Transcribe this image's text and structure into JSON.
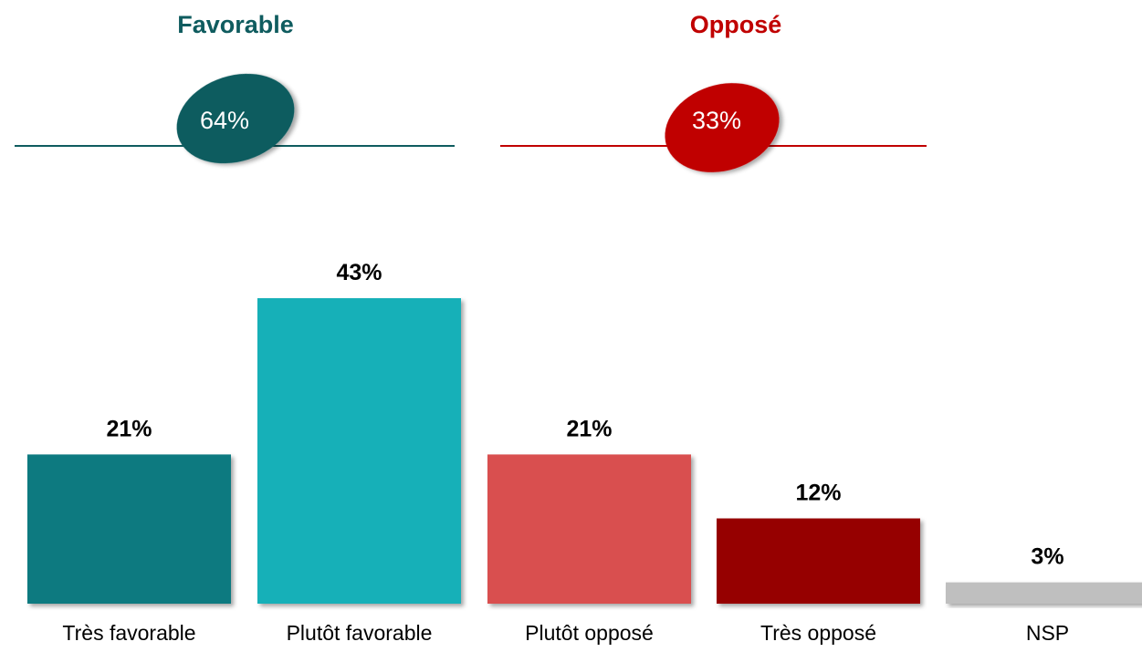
{
  "chart_data": {
    "type": "bar",
    "categories": [
      "Très favorable",
      "Plutôt favorable",
      "Plutôt opposé",
      "Très opposé",
      "NSP"
    ],
    "values": [
      21,
      43,
      21,
      12,
      3
    ],
    "value_labels": [
      "21%",
      "43%",
      "21%",
      "12%",
      "3%"
    ],
    "bar_colors": [
      "#117a80",
      "#14b0b8",
      "#d94f50",
      "#960000",
      "#bfbfbf"
    ],
    "ylim": [
      0,
      43
    ],
    "grid": false,
    "groups": [
      {
        "title": "Favorable",
        "total": 64,
        "total_label": "64%",
        "color": "#0f5c5f",
        "title_color": "#0f5c5f"
      },
      {
        "title": "Opposé",
        "total": 33,
        "total_label": "33%",
        "color": "#c00000",
        "title_color": "#c00000"
      }
    ]
  }
}
